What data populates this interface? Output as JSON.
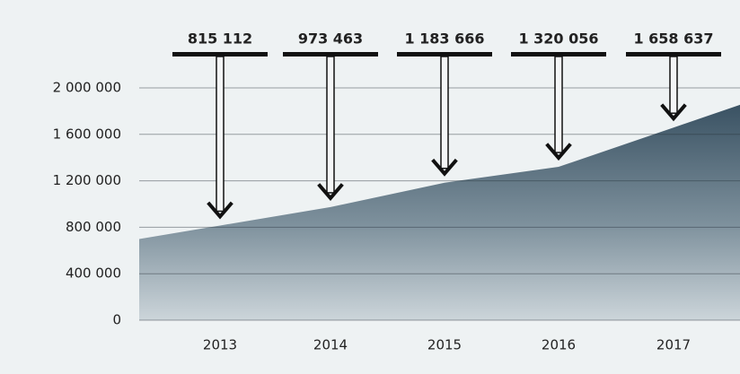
{
  "chart_data": {
    "type": "area",
    "categories": [
      "2013",
      "2014",
      "2015",
      "2016",
      "2017"
    ],
    "values": [
      815112,
      973463,
      1183666,
      1320056,
      1658637
    ],
    "value_labels": [
      "815 112",
      "973 463",
      "1 183 666",
      "1 320 056",
      "1 658 637"
    ],
    "ylim": [
      0,
      2000000
    ],
    "yticks": [
      0,
      {
        "value": 400000,
        "label": "400 000"
      },
      {
        "value": 800000,
        "label": "800 000"
      },
      {
        "value": 1200000,
        "label": "1 200 000"
      },
      {
        "value": 1600000,
        "label": "1 600 000"
      },
      {
        "value": 2000000,
        "label": "2 000 000"
      }
    ],
    "grid": true,
    "color": "#3d5667"
  }
}
